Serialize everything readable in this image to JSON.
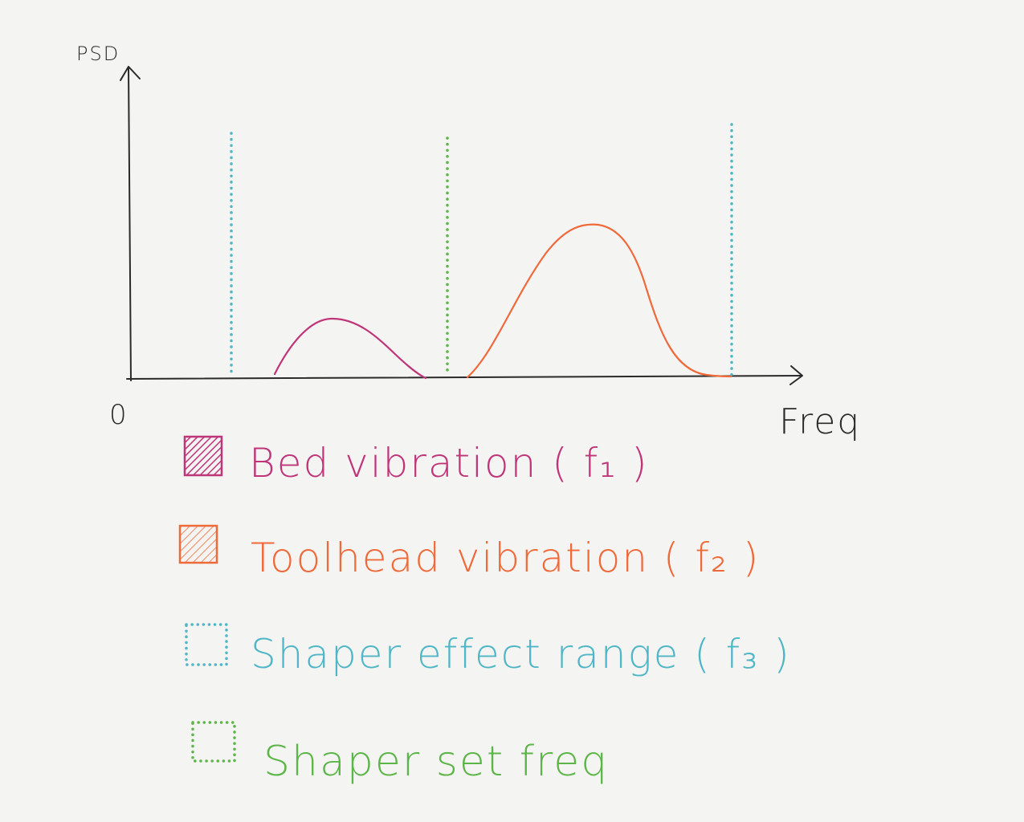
{
  "axes": {
    "y_label": "PSD",
    "x_label": "Freq",
    "origin_label": "0"
  },
  "colors": {
    "axis": "#2a2a2a",
    "bed": "#c0357a",
    "toolhead": "#ef6a3a",
    "shaper_range": "#4fb6c6",
    "shaper_set": "#5cb547"
  },
  "legend": [
    {
      "key": "bed",
      "text": "Bed vibration ( f₁ )",
      "swatch": "hatched-fill"
    },
    {
      "key": "toolhead",
      "text": "Toolhead vibration  ( f₂ )",
      "swatch": "hatched-fill"
    },
    {
      "key": "shaper_range",
      "text": "Shaper effect range ( f₃ )",
      "swatch": "dotted-box"
    },
    {
      "key": "shaper_set",
      "text": "Shaper set freq",
      "swatch": "dotted-box"
    }
  ]
}
